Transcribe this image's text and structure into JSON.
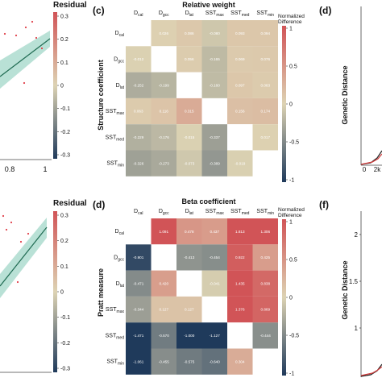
{
  "colors": {
    "neg_end": "#1f3a5b",
    "mid": "#ddd3b3",
    "pos_end": "#d15457",
    "regression_line": "#1f6b52",
    "confidence_band": "#b9e1d6",
    "points": "#e0404a",
    "genetic_line_black": "#222222",
    "genetic_line_red": "#d23c3c"
  },
  "panel_left_top": {
    "colorbar_title": "Residual",
    "xticks": [
      "0.8",
      "1"
    ]
  },
  "panel_left_bottom": {
    "colorbar_title": "Residual"
  },
  "colorbar_left": {
    "ticks": [
      "0.3",
      "0.2",
      "0.1",
      "0",
      "-0.1",
      "-0.2",
      "-0.3"
    ]
  },
  "colorbar_heatmap": {
    "title_line1": "Normalized",
    "title_line2": "Difference",
    "ticks": [
      "1",
      "0.5",
      "0",
      "-0.5",
      "-1"
    ]
  },
  "panel_c": {
    "letter": "(c)",
    "ylabel": "Structure coefficient"
  },
  "panel_d": {
    "letter": "(d)",
    "ylabel": "Pratt measure"
  },
  "panel_right_top": {
    "letter": "(d)",
    "ylabel": "Genetic Distance",
    "xticks": [
      "0",
      "2k"
    ]
  },
  "panel_right_bottom": {
    "letter": "(f)",
    "ylabel": "Genetic Distance",
    "yticks": [
      "2",
      "1.5",
      "1"
    ]
  },
  "chart_data": [
    {
      "type": "heatmap",
      "title": "Relative weight",
      "columns": [
        {
          "base": "D",
          "sub": "cal"
        },
        {
          "base": "D",
          "sub": "gcc"
        },
        {
          "base": "D",
          "sub": "lat"
        },
        {
          "base": "SST",
          "sub": "max"
        },
        {
          "base": "SST",
          "sub": "med"
        },
        {
          "base": "SST",
          "sub": "min"
        }
      ],
      "rows": [
        {
          "base": "D",
          "sub": "cal"
        },
        {
          "base": "D",
          "sub": "gcc"
        },
        {
          "base": "D",
          "sub": "lat"
        },
        {
          "base": "SST",
          "sub": "max"
        },
        {
          "base": "SST",
          "sub": "med"
        },
        {
          "base": "SST",
          "sub": "min"
        }
      ],
      "values": [
        [
          null,
          0.026,
          0.086,
          -0.08,
          0.093,
          0.094
        ],
        [
          -0.012,
          null,
          0.056,
          -0.165,
          0.069,
          0.076
        ],
        [
          -0.252,
          -0.199,
          null,
          -0.16,
          0.097,
          0.063
        ],
        [
          0.063,
          0.116,
          0.315,
          null,
          0.156,
          0.174
        ],
        [
          -0.229,
          -0.176,
          -0.015,
          -0.337,
          null,
          0.017
        ],
        [
          -0.326,
          -0.273,
          -0.073,
          -0.389,
          -0.019,
          null
        ]
      ],
      "colorbar_range": [
        -1,
        1
      ]
    },
    {
      "type": "heatmap",
      "title": "Beta coefficient",
      "columns": [
        {
          "base": "D",
          "sub": "cal"
        },
        {
          "base": "D",
          "sub": "gcc"
        },
        {
          "base": "D",
          "sub": "lat"
        },
        {
          "base": "SST",
          "sub": "max"
        },
        {
          "base": "SST",
          "sub": "med"
        },
        {
          "base": "SST",
          "sub": "min"
        }
      ],
      "rows": [
        {
          "base": "D",
          "sub": "cal"
        },
        {
          "base": "D",
          "sub": "gcc"
        },
        {
          "base": "D",
          "sub": "lat"
        },
        {
          "base": "SST",
          "sub": "max"
        },
        {
          "base": "SST",
          "sub": "med"
        },
        {
          "base": "SST",
          "sub": "min"
        }
      ],
      "values": [
        [
          null,
          1.091,
          0.478,
          0.437,
          1.813,
          1.306
        ],
        [
          -0.901,
          null,
          -0.413,
          -0.454,
          0.922,
          0.425
        ],
        [
          -0.471,
          0.42,
          null,
          -0.041,
          1.435,
          0.838
        ],
        [
          -0.344,
          0.127,
          0.127,
          null,
          1.376,
          0.869
        ],
        [
          -1.471,
          -0.57,
          -1.0,
          -1.127,
          null,
          -0.444
        ],
        [
          -1.061,
          -0.455,
          -0.575,
          -0.64,
          0.304,
          null
        ]
      ],
      "colorbar_range": [
        -1,
        1
      ]
    }
  ]
}
